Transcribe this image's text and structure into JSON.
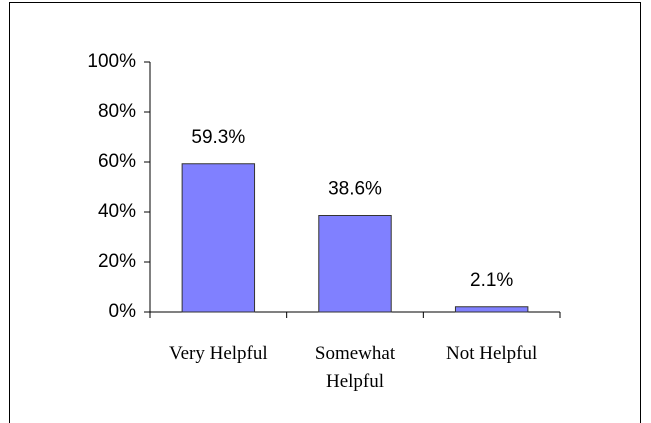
{
  "chart_data": {
    "type": "bar",
    "categories": [
      "Very Helpful",
      "Somewhat Helpful",
      "Not Helpful"
    ],
    "values": [
      59.3,
      38.6,
      2.1
    ],
    "value_labels": [
      "59.3%",
      "38.6%",
      "2.1%"
    ],
    "color": "#8080ff",
    "ylim": [
      0,
      100
    ],
    "yticks": [
      {
        "value": 0,
        "label": "0%"
      },
      {
        "value": 20,
        "label": "20%"
      },
      {
        "value": 40,
        "label": "40%"
      },
      {
        "value": 60,
        "label": "60%"
      },
      {
        "value": 80,
        "label": "80%"
      },
      {
        "value": 100,
        "label": "100%"
      }
    ],
    "grid": false
  }
}
